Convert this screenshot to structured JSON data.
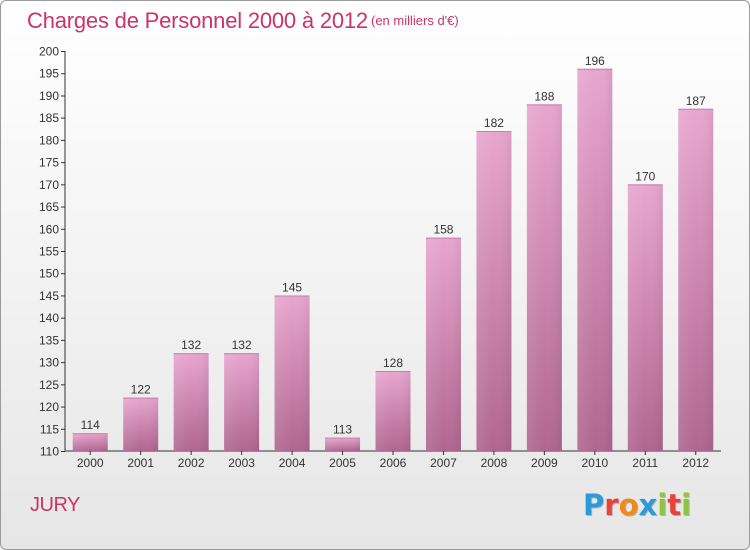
{
  "header": {
    "title": "Charges de Personnel 2000 à 2012",
    "subtitle": "(en milliers d'€)"
  },
  "footer": {
    "entity": "JURY",
    "logo": {
      "letters": [
        "P",
        "r",
        "o",
        "x",
        "i",
        "t",
        "i"
      ],
      "colors": [
        "#2a9bd6",
        "#e8433a",
        "#f08a1c",
        "#2a9bd6",
        "#8cc63f",
        "#e8433a",
        "#8cc63f"
      ]
    }
  },
  "chart_data": {
    "type": "bar",
    "categories": [
      "2000",
      "2001",
      "2002",
      "2003",
      "2004",
      "2005",
      "2006",
      "2007",
      "2008",
      "2009",
      "2010",
      "2011",
      "2012"
    ],
    "values": [
      114,
      122,
      132,
      132,
      145,
      113,
      128,
      158,
      182,
      188,
      196,
      170,
      187
    ],
    "data_labels": [
      "114",
      "122",
      "132",
      "132",
      "145",
      "113",
      "128",
      "158",
      "182",
      "188",
      "196",
      "170",
      "187"
    ],
    "ylim": [
      110,
      200
    ],
    "yticks": [
      110,
      115,
      120,
      125,
      130,
      135,
      140,
      145,
      150,
      155,
      160,
      165,
      170,
      175,
      180,
      185,
      190,
      195,
      200
    ],
    "xlabel": "",
    "ylabel": "",
    "grid": false,
    "bar_color": "#cc6699"
  }
}
